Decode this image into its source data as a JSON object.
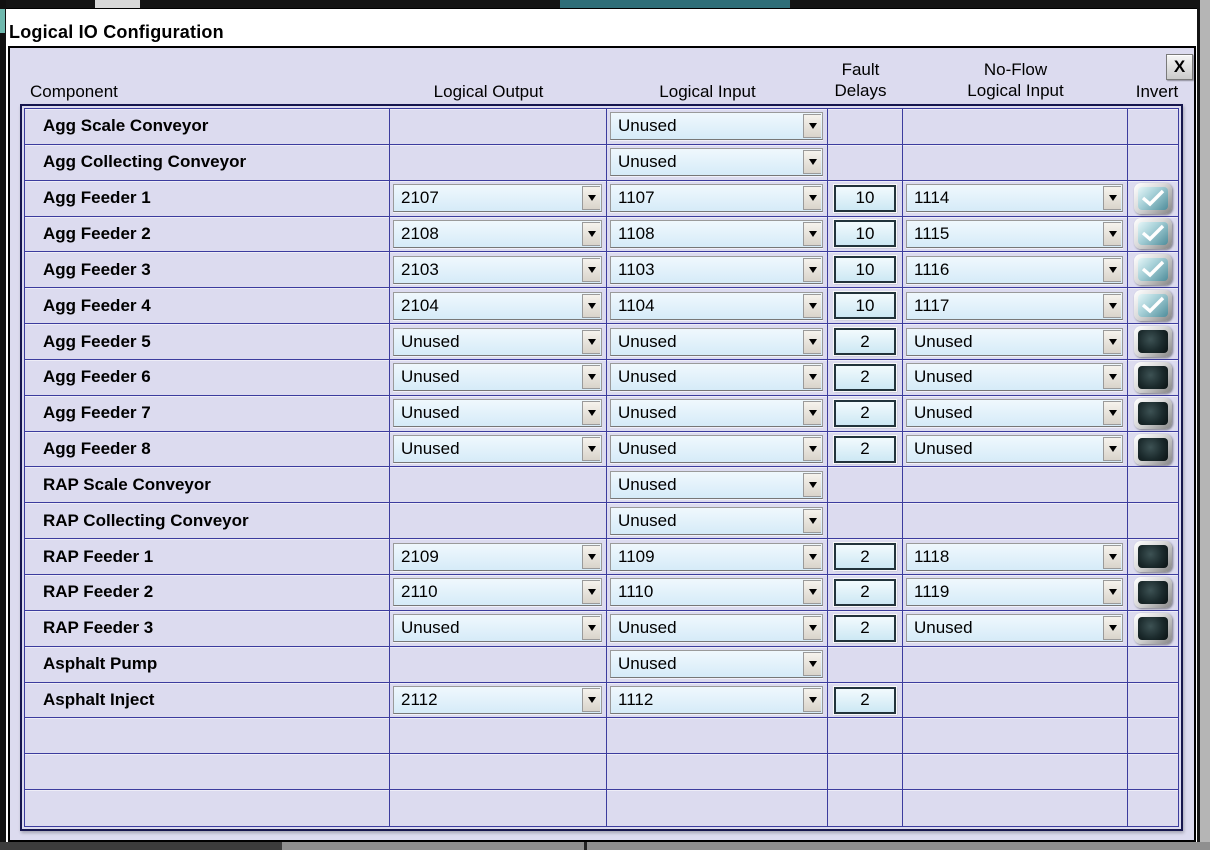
{
  "window": {
    "title": "Logical IO Configuration",
    "close_label": "X"
  },
  "colors": {
    "panel_bg": "#dcdbef",
    "grid_line": "#3c3c9e",
    "table_border": "#16164e",
    "combo_bg": "#ddeefa",
    "fault_box_bg": "#d5edf8",
    "check_teal": "#4f8d9b",
    "unchecked_dark": "#101b1c"
  },
  "table": {
    "headers": {
      "component": "Component",
      "logical_output": "Logical Output",
      "logical_input": "Logical Input",
      "fault_line1": "Fault",
      "fault_line2": "Delays",
      "noflow_line1": "No-Flow",
      "noflow_line2": "Logical Input",
      "invert": "Invert"
    },
    "rows": [
      {
        "component": "Agg Scale Conveyor",
        "output": null,
        "input": "Unused",
        "fault": null,
        "noflow": null,
        "invert": null
      },
      {
        "component": "Agg Collecting Conveyor",
        "output": null,
        "input": "Unused",
        "fault": null,
        "noflow": null,
        "invert": null
      },
      {
        "component": "Agg Feeder 1",
        "output": "2107",
        "input": "1107",
        "fault": "10",
        "noflow": "1114",
        "invert": true
      },
      {
        "component": "Agg Feeder 2",
        "output": "2108",
        "input": "1108",
        "fault": "10",
        "noflow": "1115",
        "invert": true
      },
      {
        "component": "Agg Feeder 3",
        "output": "2103",
        "input": "1103",
        "fault": "10",
        "noflow": "1116",
        "invert": true
      },
      {
        "component": "Agg Feeder 4",
        "output": "2104",
        "input": "1104",
        "fault": "10",
        "noflow": "1117",
        "invert": true
      },
      {
        "component": "Agg Feeder 5",
        "output": "Unused",
        "input": "Unused",
        "fault": "2",
        "noflow": "Unused",
        "invert": false
      },
      {
        "component": "Agg Feeder 6",
        "output": "Unused",
        "input": "Unused",
        "fault": "2",
        "noflow": "Unused",
        "invert": false
      },
      {
        "component": "Agg Feeder 7",
        "output": "Unused",
        "input": "Unused",
        "fault": "2",
        "noflow": "Unused",
        "invert": false
      },
      {
        "component": "Agg Feeder 8",
        "output": "Unused",
        "input": "Unused",
        "fault": "2",
        "noflow": "Unused",
        "invert": false
      },
      {
        "component": "RAP Scale Conveyor",
        "output": null,
        "input": "Unused",
        "fault": null,
        "noflow": null,
        "invert": null
      },
      {
        "component": "RAP Collecting Conveyor",
        "output": null,
        "input": "Unused",
        "fault": null,
        "noflow": null,
        "invert": null
      },
      {
        "component": "RAP Feeder 1",
        "output": "2109",
        "input": "1109",
        "fault": "2",
        "noflow": "1118",
        "invert": false
      },
      {
        "component": "RAP Feeder 2",
        "output": "2110",
        "input": "1110",
        "fault": "2",
        "noflow": "1119",
        "invert": false
      },
      {
        "component": "RAP Feeder 3",
        "output": "Unused",
        "input": "Unused",
        "fault": "2",
        "noflow": "Unused",
        "invert": false
      },
      {
        "component": "Asphalt Pump",
        "output": null,
        "input": "Unused",
        "fault": null,
        "noflow": null,
        "invert": null
      },
      {
        "component": "Asphalt Inject",
        "output": "2112",
        "input": "1112",
        "fault": "2",
        "noflow": null,
        "invert": null
      },
      {
        "component": "",
        "output": null,
        "input": null,
        "fault": null,
        "noflow": null,
        "invert": null
      },
      {
        "component": "",
        "output": null,
        "input": null,
        "fault": null,
        "noflow": null,
        "invert": null
      },
      {
        "component": "",
        "output": null,
        "input": null,
        "fault": null,
        "noflow": null,
        "invert": null
      }
    ]
  }
}
